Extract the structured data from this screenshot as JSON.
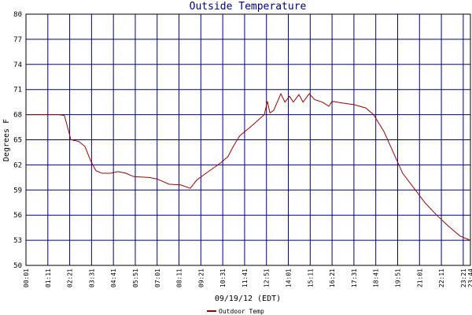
{
  "chart_data": {
    "type": "line",
    "title": "Outside Temperature",
    "xlabel": "09/19/12 (EDT)",
    "ylabel": "Degrees F",
    "x": [
      1,
      107,
      124,
      145,
      170,
      190,
      208,
      225,
      245,
      271,
      296,
      321,
      346,
      396,
      422,
      459,
      497,
      527,
      548,
      585,
      623,
      648,
      666,
      686,
      719,
      749,
      764,
      774,
      782,
      794,
      817,
      830,
      845,
      857,
      875,
      888,
      908,
      925,
      950,
      971,
      981,
      1013,
      1051,
      1089,
      1114,
      1147,
      1177,
      1207,
      1248,
      1278,
      1316,
      1353,
      1391,
      1424
    ],
    "series": [
      {
        "name": "Outdoor Temp",
        "color": "#a00000",
        "values": [
          68,
          68,
          67.9,
          65,
          64.8,
          64.2,
          62.5,
          61.3,
          61,
          61,
          61.2,
          61,
          60.6,
          60.5,
          60.3,
          59.7,
          59.6,
          59.2,
          60.2,
          61.2,
          62.2,
          63,
          64.3,
          65.5,
          66.5,
          67.5,
          68,
          69.6,
          68.2,
          68.5,
          70.5,
          69.5,
          70.2,
          69.5,
          70.4,
          69.5,
          70.5,
          69.8,
          69.5,
          69,
          69.6,
          69.4,
          69.2,
          68.8,
          68,
          66,
          63.5,
          61,
          59,
          57.5,
          56,
          54.7,
          53.5,
          53
        ]
      }
    ],
    "xlim": [
      1,
      1424
    ],
    "xticks": [
      {
        "value": 1,
        "label": "00:01"
      },
      {
        "value": 71,
        "label": "01:11"
      },
      {
        "value": 141,
        "label": "02:21"
      },
      {
        "value": 211,
        "label": "03:31"
      },
      {
        "value": 281,
        "label": "04:41"
      },
      {
        "value": 351,
        "label": "05:51"
      },
      {
        "value": 421,
        "label": "07:01"
      },
      {
        "value": 491,
        "label": "08:11"
      },
      {
        "value": 561,
        "label": "09:21"
      },
      {
        "value": 631,
        "label": "10:31"
      },
      {
        "value": 701,
        "label": "11:41"
      },
      {
        "value": 771,
        "label": "12:51"
      },
      {
        "value": 841,
        "label": "14:01"
      },
      {
        "value": 911,
        "label": "15:11"
      },
      {
        "value": 981,
        "label": "16:21"
      },
      {
        "value": 1051,
        "label": "17:31"
      },
      {
        "value": 1121,
        "label": "18:41"
      },
      {
        "value": 1191,
        "label": "19:51"
      },
      {
        "value": 1261,
        "label": "21:01"
      },
      {
        "value": 1331,
        "label": "22:11"
      },
      {
        "value": 1401,
        "label": "23:21"
      },
      {
        "value": 1424,
        "label": "23:44"
      }
    ],
    "ylim": [
      50,
      80
    ],
    "yticks": [
      50,
      53,
      56,
      59,
      62,
      65,
      68,
      71,
      74,
      77,
      80
    ],
    "grid": true
  }
}
